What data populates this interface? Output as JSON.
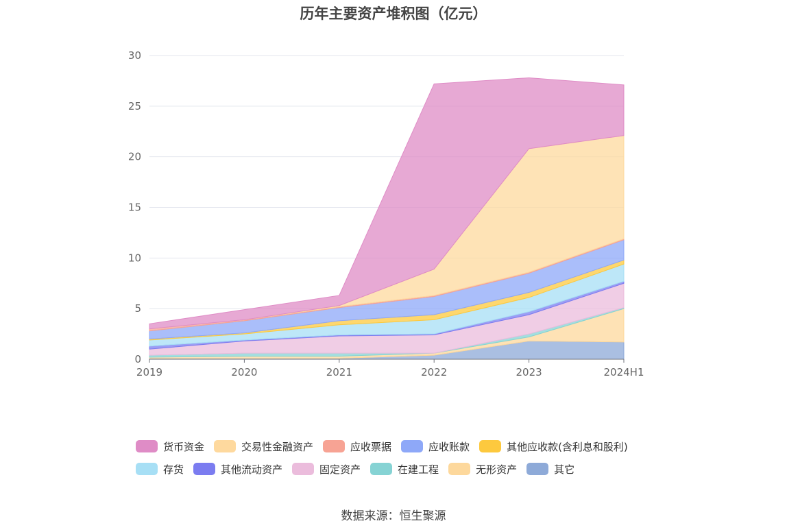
{
  "title": "历年主要资产堆积图（亿元）",
  "source": "数据来源：恒生聚源",
  "chart_data": {
    "type": "area",
    "stacked": true,
    "categories": [
      "2019",
      "2020",
      "2021",
      "2022",
      "2023",
      "2024H1"
    ],
    "ylim": [
      0,
      30
    ],
    "yticks": [
      0,
      5,
      10,
      15,
      20,
      25,
      30
    ],
    "grid": true,
    "legend_position": "bottom",
    "series": [
      {
        "name": "其它",
        "color": "#8eaad8",
        "values": [
          0.1,
          0.1,
          0.1,
          0.4,
          1.8,
          1.7
        ]
      },
      {
        "name": "无形资产",
        "color": "#fdd89c",
        "values": [
          0.1,
          0.2,
          0.2,
          0.2,
          0.4,
          3.3
        ]
      },
      {
        "name": "在建工程",
        "color": "#86d3d4",
        "values": [
          0.2,
          0.3,
          0.3,
          0.0,
          0.3,
          0.1
        ]
      },
      {
        "name": "固定资产",
        "color": "#ebbcdc",
        "values": [
          0.6,
          1.2,
          1.7,
          1.8,
          1.9,
          2.4
        ]
      },
      {
        "name": "其他流动资产",
        "color": "#7b7cf0",
        "values": [
          0.3,
          0.1,
          0.1,
          0.1,
          0.3,
          0.2
        ]
      },
      {
        "name": "存货",
        "color": "#a7dff5",
        "values": [
          0.6,
          0.6,
          1.0,
          1.4,
          1.4,
          1.7
        ]
      },
      {
        "name": "其他应收款(含利息和股利)",
        "color": "#fdc93e",
        "values": [
          0.1,
          0.1,
          0.4,
          0.5,
          0.5,
          0.4
        ]
      },
      {
        "name": "应收账款",
        "color": "#8ea8f8",
        "values": [
          0.8,
          1.2,
          1.3,
          1.8,
          1.9,
          2.0
        ]
      },
      {
        "name": "应收票据",
        "color": "#f7a394",
        "values": [
          0.2,
          0.1,
          0.1,
          0.1,
          0.1,
          0.1
        ]
      },
      {
        "name": "交易性金融资产",
        "color": "#fed99e",
        "values": [
          0.0,
          0.0,
          0.1,
          2.6,
          12.2,
          10.2
        ]
      },
      {
        "name": "货币资金",
        "color": "#df8cc6",
        "values": [
          0.5,
          1.0,
          1.0,
          18.3,
          7.0,
          5.0
        ]
      }
    ]
  },
  "legend": {
    "rows": [
      [
        "货币资金",
        "交易性金融资产",
        "应收票据",
        "应收账款",
        "其他应收款(含利息和股利)"
      ],
      [
        "存货",
        "其他流动资产",
        "固定资产",
        "在建工程",
        "无形资产",
        "其它"
      ]
    ]
  }
}
